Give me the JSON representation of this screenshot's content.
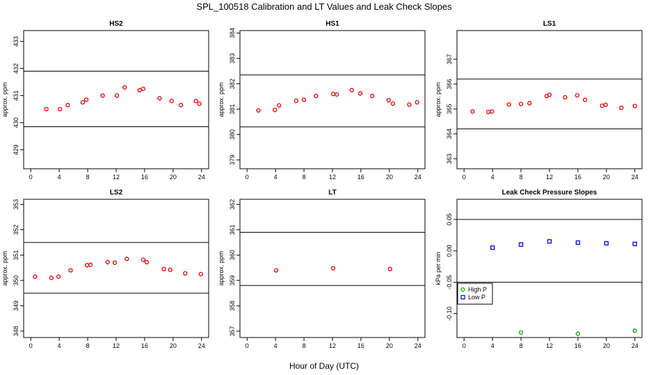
{
  "figure": {
    "title": "SPL_100518  Calibration and LT Values and Leak Check Slopes",
    "xlabel": "Hour of Day (UTC)"
  },
  "chart_data": [
    {
      "id": "HS2",
      "type": "scatter",
      "title": "HS2",
      "ylabel": "approx. ppm",
      "xlim": [
        -1,
        25
      ],
      "ylim": [
        428.3,
        433.4
      ],
      "xticks": [
        0,
        4,
        8,
        12,
        16,
        20,
        24
      ],
      "yticks": [
        429,
        430,
        431,
        432,
        433
      ],
      "hlines": [
        431.9,
        429.85
      ],
      "series": [
        {
          "name": "HS2",
          "color": "#dd0000",
          "marker": "circle",
          "x": [
            2.2,
            4.1,
            5.2,
            7.3,
            7.8,
            10.1,
            12.1,
            13.2,
            15.3,
            15.8,
            18.1,
            19.8,
            21.1,
            23.2,
            23.7
          ],
          "y": [
            430.5,
            430.5,
            430.65,
            430.75,
            430.85,
            431.0,
            431.0,
            431.3,
            431.2,
            431.25,
            430.9,
            430.8,
            430.65,
            430.8,
            430.7
          ]
        }
      ]
    },
    {
      "id": "HS1",
      "type": "scatter",
      "title": "HS1",
      "ylabel": "approx. ppm",
      "xlim": [
        -1,
        25
      ],
      "ylim": [
        378.65,
        384.1
      ],
      "xticks": [
        0,
        4,
        8,
        12,
        16,
        20,
        24
      ],
      "yticks": [
        379,
        380,
        381,
        382,
        383,
        384
      ],
      "hlines": [
        382.35,
        380.3
      ],
      "series": [
        {
          "name": "HS1",
          "color": "#dd0000",
          "marker": "circle",
          "x": [
            1.6,
            3.9,
            4.5,
            6.9,
            8.0,
            9.7,
            12.1,
            12.6,
            14.7,
            15.9,
            17.6,
            19.9,
            20.5,
            22.8,
            23.9
          ],
          "y": [
            380.95,
            380.97,
            381.15,
            381.33,
            381.37,
            381.52,
            381.6,
            381.58,
            381.75,
            381.62,
            381.52,
            381.35,
            381.22,
            381.18,
            381.27
          ]
        }
      ]
    },
    {
      "id": "LS1",
      "type": "scatter",
      "title": "LS1",
      "ylabel": "approx. ppm",
      "xlim": [
        -1,
        25
      ],
      "ylim": [
        362.6,
        368.15
      ],
      "xticks": [
        0,
        4,
        8,
        12,
        16,
        20,
        24
      ],
      "yticks": [
        363,
        364,
        365,
        366,
        367
      ],
      "hlines": [
        366.2,
        364.2
      ],
      "series": [
        {
          "name": "LS1",
          "color": "#dd0000",
          "marker": "circle",
          "x": [
            1.2,
            3.4,
            3.9,
            6.3,
            8.0,
            9.2,
            11.6,
            12.0,
            14.2,
            15.9,
            17.0,
            19.4,
            19.9,
            22.1,
            24.0
          ],
          "y": [
            364.9,
            364.88,
            364.9,
            365.18,
            365.2,
            365.23,
            365.52,
            365.57,
            365.47,
            365.55,
            365.37,
            365.13,
            365.17,
            365.05,
            365.12
          ]
        }
      ]
    },
    {
      "id": "LS2",
      "type": "scatter",
      "title": "LS2",
      "ylabel": "approx. ppm",
      "xlim": [
        -1,
        25
      ],
      "ylim": [
        347.75,
        353.2
      ],
      "xticks": [
        0,
        4,
        8,
        12,
        16,
        20,
        24
      ],
      "yticks": [
        348,
        349,
        350,
        351,
        352,
        353
      ],
      "hlines": [
        351.5,
        349.5
      ],
      "series": [
        {
          "name": "LS2",
          "color": "#dd0000",
          "marker": "circle",
          "x": [
            0.6,
            2.9,
            3.9,
            5.6,
            7.9,
            8.4,
            10.8,
            11.8,
            13.5,
            15.8,
            16.3,
            18.7,
            19.6,
            21.7,
            23.9
          ],
          "y": [
            350.15,
            350.1,
            350.15,
            350.4,
            350.6,
            350.62,
            350.72,
            350.7,
            350.85,
            350.82,
            350.72,
            350.45,
            350.42,
            350.28,
            350.25
          ]
        }
      ]
    },
    {
      "id": "LT",
      "type": "scatter",
      "title": "LT",
      "ylabel": "approx. ppm",
      "xlim": [
        -1,
        25
      ],
      "ylim": [
        356.75,
        362.2
      ],
      "xticks": [
        0,
        4,
        8,
        12,
        16,
        20,
        24
      ],
      "yticks": [
        357,
        358,
        359,
        360,
        361,
        362
      ],
      "hlines": [
        360.9,
        358.8
      ],
      "series": [
        {
          "name": "LT",
          "color": "#dd0000",
          "marker": "circle",
          "x": [
            4.1,
            12.1,
            20.1
          ],
          "y": [
            359.4,
            359.48,
            359.45
          ]
        }
      ]
    },
    {
      "id": "LC",
      "type": "scatter",
      "title": "Leak Check Pressure Slopes",
      "ylabel": "kPa per min",
      "xlim": [
        -1,
        25
      ],
      "ylim": [
        -0.138,
        0.082
      ],
      "xticks": [
        0,
        4,
        8,
        12,
        16,
        20,
        24
      ],
      "yticks": [
        -0.1,
        -0.05,
        0.0,
        0.05
      ],
      "ytick_labels": [
        "-0.10",
        "-0.05",
        "0.00",
        "0.05"
      ],
      "hlines": [
        0.05,
        -0.05
      ],
      "legend": {
        "position": "lower-left",
        "entries": [
          "High P",
          "Low P"
        ]
      },
      "series": [
        {
          "name": "High P",
          "color": "#00aa00",
          "marker": "circle",
          "x": [
            8.0,
            16.0,
            24.0
          ],
          "y": [
            -0.13,
            -0.132,
            -0.127
          ]
        },
        {
          "name": "Low P",
          "color": "#0000dd",
          "marker": "square",
          "x": [
            4.0,
            8.0,
            12.0,
            16.0,
            20.0,
            24.0
          ],
          "y": [
            0.005,
            0.01,
            0.015,
            0.013,
            0.012,
            0.011
          ]
        }
      ]
    }
  ]
}
